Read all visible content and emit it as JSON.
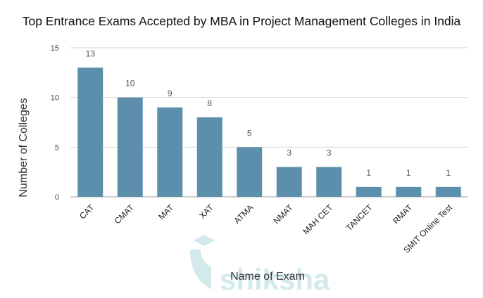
{
  "chart_data": {
    "type": "bar",
    "title": "Top Entrance Exams Accepted by MBA in Project Management Colleges in India",
    "x_label": "Name of Exam",
    "y_label": "Number of Colleges",
    "categories": [
      "CAT",
      "CMAT",
      "MAT",
      "XAT",
      "ATMA",
      "NMAT",
      "MAH CET",
      "TANCET",
      "RMAT",
      "SMIT Online Test"
    ],
    "values": [
      13,
      10,
      9,
      8,
      5,
      3,
      3,
      1,
      1,
      1
    ],
    "color": "#5b8fab",
    "ylim": [
      0,
      15
    ],
    "yticks": [
      0,
      5,
      10,
      15
    ],
    "grid": true,
    "watermark": "shiksha"
  }
}
